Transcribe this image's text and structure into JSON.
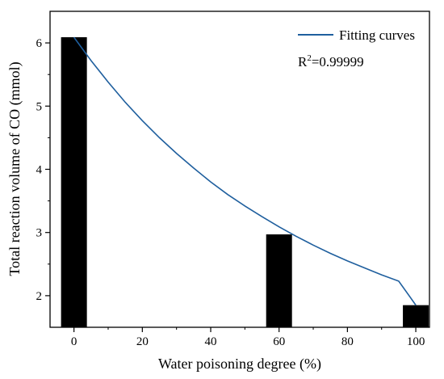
{
  "chart_data": {
    "type": "bar",
    "xlabel": "Water poisoning degree (%)",
    "ylabel": "Total reaction volume of CO (mmol)",
    "x": [
      0,
      60,
      100
    ],
    "values": [
      6.09,
      2.97,
      1.85
    ],
    "bar_color": "#000000",
    "xlim": [
      -7,
      104
    ],
    "ylim": [
      1.5,
      6.5
    ],
    "xticks": [
      0,
      20,
      40,
      60,
      80,
      100
    ],
    "yticks": [
      2,
      3,
      4,
      5,
      6
    ],
    "grid": false,
    "series": [
      {
        "name": "Fitting curves",
        "type": "line",
        "color": "#1f5f9e",
        "x": [
          0,
          5,
          10,
          15,
          20,
          25,
          30,
          35,
          40,
          45,
          50,
          55,
          60,
          65,
          70,
          75,
          80,
          85,
          90,
          95,
          100
        ],
        "values": [
          6.09,
          5.72,
          5.38,
          5.06,
          4.77,
          4.5,
          4.25,
          4.02,
          3.8,
          3.6,
          3.42,
          3.25,
          3.09,
          2.94,
          2.8,
          2.67,
          2.55,
          2.44,
          2.33,
          2.23,
          1.85
        ]
      }
    ],
    "legend_position": "top-right",
    "annotation": {
      "prefix": "R",
      "superscript": "2",
      "suffix": "=0.99999"
    }
  }
}
